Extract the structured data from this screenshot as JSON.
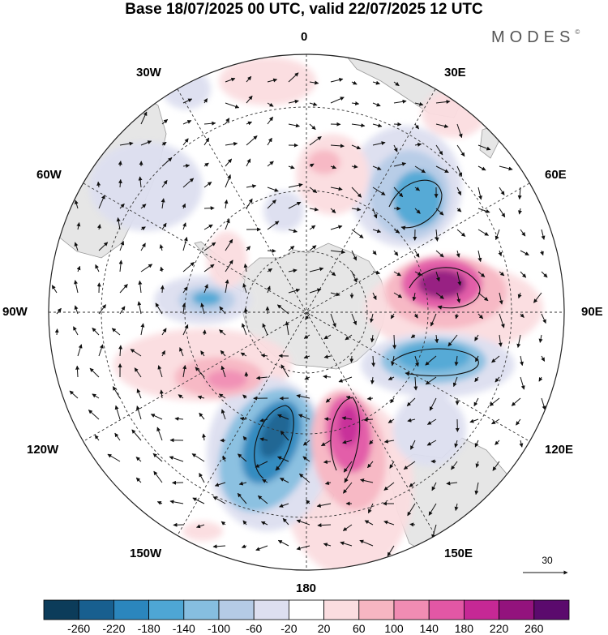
{
  "title": "Base 18/07/2025 00 UTC, valid 22/07/2025 12 UTC",
  "brand": {
    "name": "MODES",
    "mark": "©"
  },
  "longitude_labels": [
    {
      "id": "lon-0",
      "text": "0"
    },
    {
      "id": "lon-30e",
      "text": "30E"
    },
    {
      "id": "lon-60e",
      "text": "60E"
    },
    {
      "id": "lon-90e",
      "text": "90E"
    },
    {
      "id": "lon-120e",
      "text": "120E"
    },
    {
      "id": "lon-150e",
      "text": "150E"
    },
    {
      "id": "lon-180",
      "text": "180"
    },
    {
      "id": "lon-150w",
      "text": "150W"
    },
    {
      "id": "lon-120w",
      "text": "120W"
    },
    {
      "id": "lon-90w",
      "text": "90W"
    },
    {
      "id": "lon-60w",
      "text": "60W"
    },
    {
      "id": "lon-30w",
      "text": "30W"
    }
  ],
  "reference_vector": {
    "label": "30"
  },
  "colorbar": {
    "colors": [
      "#0c3c5a",
      "#185f8f",
      "#2b86bd",
      "#4ea6d4",
      "#86bee0",
      "#b5cbe6",
      "#dddff0",
      "#ffffff",
      "#fbdde0",
      "#f7b6c2",
      "#f18cb3",
      "#e257a5",
      "#c62895",
      "#93137d",
      "#5b0a6d"
    ],
    "tick_labels": [
      "-260",
      "-220",
      "-180",
      "-140",
      "-100",
      "-60",
      "-20",
      "20",
      "60",
      "100",
      "140",
      "180",
      "220",
      "260"
    ]
  },
  "colors": {
    "land": "#e6e6e6",
    "coast": "#888888",
    "grid": "#333333",
    "arrow": "#111111"
  }
}
